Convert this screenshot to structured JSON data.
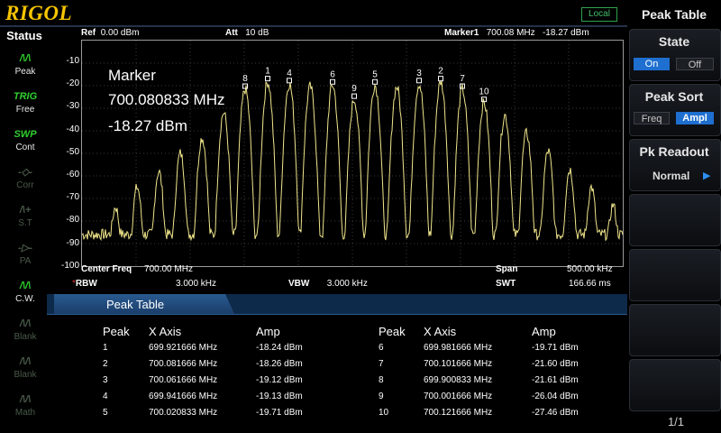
{
  "brand": "RIGOL",
  "remote_status": "Local",
  "status": {
    "title": "Status",
    "items": [
      {
        "glyph": "/\\/\\",
        "label": "Peak",
        "active": true
      },
      {
        "glyph": "TRIG",
        "label": "Free",
        "active": true
      },
      {
        "glyph": "SWP",
        "label": "Cont",
        "active": true
      },
      {
        "glyph": "-◇-",
        "label": "Corr",
        "active": false
      },
      {
        "glyph": "/\\+",
        "label": "S.T",
        "active": false
      },
      {
        "glyph": "-▷-",
        "label": "PA",
        "active": false
      },
      {
        "glyph": "/\\/\\",
        "label": "C.W.",
        "active": true
      },
      {
        "glyph": "/\\/\\",
        "label": "Blank",
        "active": false
      },
      {
        "glyph": "/\\/\\",
        "label": "Blank",
        "active": false
      },
      {
        "glyph": "/\\/\\",
        "label": "Math",
        "active": false
      }
    ]
  },
  "header": {
    "ref_label": "Ref",
    "ref_value": "0.00 dBm",
    "att_label": "Att",
    "att_value": "10 dB",
    "marker_label": "Marker1",
    "marker_freq": "700.08 MHz",
    "marker_amp": "-18.27 dBm"
  },
  "y_axis": {
    "ticks": [
      "-10",
      "-20",
      "-30",
      "-40",
      "-50",
      "-60",
      "-70",
      "-80",
      "-90",
      "-100"
    ]
  },
  "marker_readout": {
    "title": "Marker",
    "freq": "700.080833 MHz",
    "amp": "-18.27 dBm"
  },
  "footer": {
    "center_label": "Center Freq",
    "center_value": "700.00 MHz",
    "span_label": "Span",
    "span_value": "500.00 kHz",
    "rbw_label": "RBW",
    "rbw_value": "3.000 kHz",
    "vbw_label": "VBW",
    "vbw_value": "3.000 kHz",
    "swt_label": "SWT",
    "swt_value": "166.66 ms"
  },
  "peak_labels": [
    "8",
    "1",
    "4",
    "6",
    "9",
    "5",
    "3",
    "2",
    "7",
    "10"
  ],
  "peak_table": {
    "title": "Peak Table",
    "headers": {
      "peak": "Peak",
      "x": "X Axis",
      "amp": "Amp"
    },
    "rows": [
      {
        "peak": "1",
        "x": "699.921666 MHz",
        "amp": "-18.24 dBm"
      },
      {
        "peak": "2",
        "x": "700.081666 MHz",
        "amp": "-18.26 dBm"
      },
      {
        "peak": "3",
        "x": "700.061666 MHz",
        "amp": "-19.12 dBm"
      },
      {
        "peak": "4",
        "x": "699.941666 MHz",
        "amp": "-19.13 dBm"
      },
      {
        "peak": "5",
        "x": "700.020833 MHz",
        "amp": "-19.71 dBm"
      },
      {
        "peak": "6",
        "x": "699.981666 MHz",
        "amp": "-19.71 dBm"
      },
      {
        "peak": "7",
        "x": "700.101666 MHz",
        "amp": "-21.60 dBm"
      },
      {
        "peak": "8",
        "x": "699.900833 MHz",
        "amp": "-21.61 dBm"
      },
      {
        "peak": "9",
        "x": "700.001666 MHz",
        "amp": "-26.04 dBm"
      },
      {
        "peak": "10",
        "x": "700.121666 MHz",
        "amp": "-27.46 dBm"
      }
    ]
  },
  "menu": {
    "title": "Peak Table",
    "state": {
      "label": "State",
      "on": "On",
      "off": "Off"
    },
    "sort": {
      "label": "Peak Sort",
      "freq": "Freq",
      "ampl": "Ampl"
    },
    "readout": {
      "label": "Pk Readout",
      "value": "Normal"
    },
    "page": "1/1"
  },
  "colors": {
    "trace": "#f0e68c",
    "brand": "#f6c400",
    "accent": "#1e6fd0",
    "active_icon": "#2ed02e"
  }
}
